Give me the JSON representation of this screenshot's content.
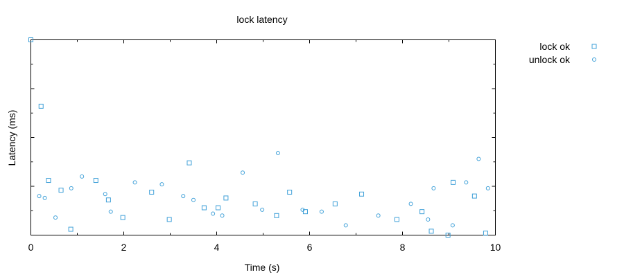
{
  "chart_data": {
    "type": "scatter",
    "title": "lock latency",
    "xlabel": "Time (s)",
    "ylabel": "Latency (ms)",
    "xlim": [
      0,
      10
    ],
    "ylim": [
      0,
      1
    ],
    "x_ticks": [
      0,
      2,
      4,
      6,
      8,
      10
    ],
    "y_tick_labels_shown": false,
    "grid": false,
    "legend_position": "top-right outside plot",
    "marker_color": "#3fa0d8",
    "series": [
      {
        "name": "lock ok",
        "marker": "square",
        "points": [
          [
            0.0,
            1.0
          ],
          [
            0.22,
            0.66
          ],
          [
            0.38,
            0.28
          ],
          [
            0.65,
            0.23
          ],
          [
            0.86,
            0.03
          ],
          [
            1.4,
            0.28
          ],
          [
            1.67,
            0.18
          ],
          [
            1.98,
            0.09
          ],
          [
            2.6,
            0.22
          ],
          [
            2.98,
            0.08
          ],
          [
            3.41,
            0.37
          ],
          [
            3.73,
            0.14
          ],
          [
            4.03,
            0.14
          ],
          [
            4.2,
            0.19
          ],
          [
            4.83,
            0.16
          ],
          [
            5.29,
            0.1
          ],
          [
            5.57,
            0.22
          ],
          [
            5.91,
            0.12
          ],
          [
            6.55,
            0.16
          ],
          [
            7.12,
            0.21
          ],
          [
            7.88,
            0.08
          ],
          [
            8.42,
            0.12
          ],
          [
            8.62,
            0.02
          ],
          [
            8.98,
            0.0
          ],
          [
            9.09,
            0.27
          ],
          [
            9.55,
            0.2
          ],
          [
            9.79,
            0.01
          ]
        ]
      },
      {
        "name": "unlock ok",
        "marker": "circle",
        "points": [
          [
            0.18,
            0.2
          ],
          [
            0.3,
            0.19
          ],
          [
            0.53,
            0.09
          ],
          [
            0.87,
            0.24
          ],
          [
            1.1,
            0.3
          ],
          [
            1.6,
            0.21
          ],
          [
            1.72,
            0.12
          ],
          [
            2.24,
            0.27
          ],
          [
            2.82,
            0.26
          ],
          [
            3.28,
            0.2
          ],
          [
            3.5,
            0.18
          ],
          [
            3.92,
            0.11
          ],
          [
            4.12,
            0.1
          ],
          [
            4.56,
            0.32
          ],
          [
            4.98,
            0.13
          ],
          [
            5.32,
            0.42
          ],
          [
            5.85,
            0.13
          ],
          [
            6.26,
            0.12
          ],
          [
            6.78,
            0.05
          ],
          [
            7.48,
            0.1
          ],
          [
            8.18,
            0.16
          ],
          [
            8.55,
            0.08
          ],
          [
            8.67,
            0.24
          ],
          [
            9.08,
            0.05
          ],
          [
            9.37,
            0.27
          ],
          [
            9.64,
            0.39
          ],
          [
            9.84,
            0.24
          ]
        ]
      }
    ]
  }
}
